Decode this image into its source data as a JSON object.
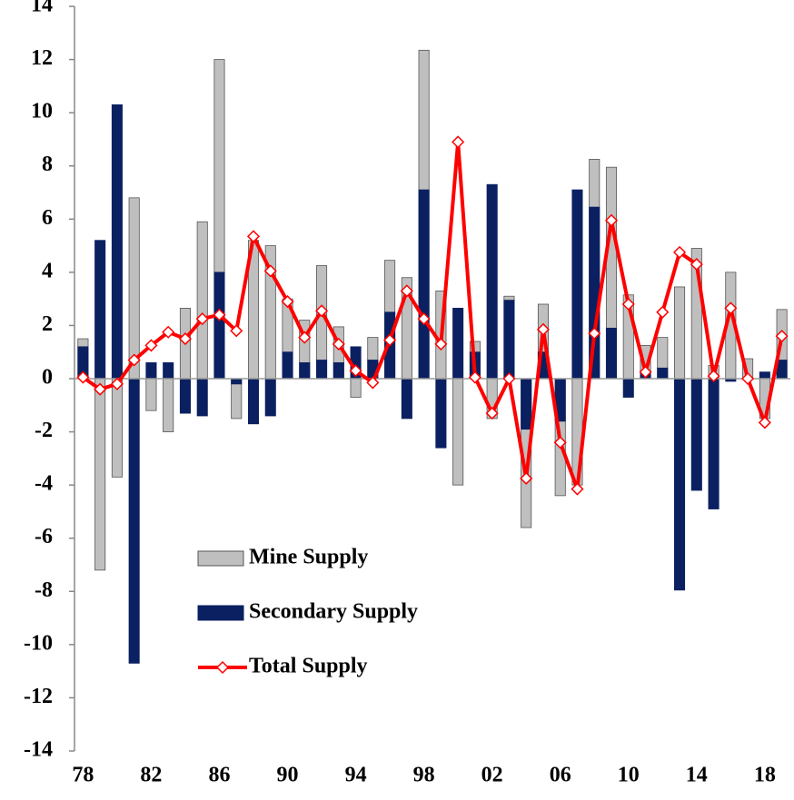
{
  "chart_data": {
    "type": "bar-line",
    "categories": [
      "78",
      null,
      null,
      null,
      "82",
      null,
      null,
      null,
      "86",
      null,
      null,
      null,
      "90",
      null,
      null,
      null,
      "94",
      null,
      null,
      null,
      "98",
      null,
      null,
      null,
      "02",
      null,
      null,
      null,
      "06",
      null,
      null,
      null,
      "10",
      null,
      null,
      null,
      "14",
      null,
      null,
      null,
      "18",
      null
    ],
    "series": [
      {
        "name": "Mine Supply",
        "type": "bar",
        "color": "#bfbfbf",
        "values": [
          1.5,
          -7.2,
          -3.7,
          6.8,
          -1.2,
          -2.0,
          2.65,
          5.9,
          12.0,
          -1.5,
          5.2,
          5.0,
          3.0,
          2.2,
          4.25,
          1.95,
          -0.7,
          1.55,
          4.45,
          3.8,
          12.35,
          3.3,
          -4.0,
          1.4,
          -1.5,
          3.1,
          -5.6,
          2.8,
          -4.4,
          -4.0,
          8.25,
          7.95,
          3.15,
          1.25,
          1.55,
          3.45,
          4.9,
          0.5,
          4.0,
          0.75,
          -1.5,
          2.6
        ]
      },
      {
        "name": "Secondary Supply",
        "type": "bar",
        "color": "#0a2060",
        "values": [
          1.2,
          5.2,
          10.3,
          -10.7,
          0.6,
          0.6,
          -1.3,
          -1.4,
          4.0,
          -0.2,
          -1.7,
          -1.4,
          1.0,
          0.6,
          0.7,
          0.6,
          1.2,
          0.7,
          2.5,
          -1.5,
          7.1,
          -2.6,
          2.65,
          1.0,
          7.3,
          2.95,
          -1.9,
          1.0,
          -1.6,
          7.1,
          6.45,
          1.9,
          -0.7,
          0.2,
          0.4,
          -7.95,
          -4.2,
          -4.9,
          -0.1,
          0.0,
          0.25,
          0.7
        ]
      },
      {
        "name": "Total Supply",
        "type": "line",
        "color": "#ff0000",
        "values": [
          0.05,
          -0.4,
          -0.2,
          0.7,
          1.25,
          1.75,
          1.5,
          2.25,
          2.4,
          1.8,
          5.35,
          4.05,
          2.9,
          1.55,
          2.55,
          1.3,
          0.3,
          -0.15,
          1.45,
          3.3,
          2.25,
          1.3,
          8.9,
          0.05,
          -1.3,
          0.0,
          -3.75,
          1.85,
          -2.4,
          -4.15,
          1.7,
          5.95,
          2.8,
          0.25,
          2.5,
          4.75,
          4.3,
          0.1,
          2.65,
          0.0,
          -1.65,
          1.6
        ]
      }
    ],
    "ylim": [
      -14,
      14
    ],
    "yticks": [
      -14,
      -12,
      -10,
      -8,
      -6,
      -4,
      -2,
      0,
      2,
      4,
      6,
      8,
      10,
      12,
      14
    ]
  }
}
